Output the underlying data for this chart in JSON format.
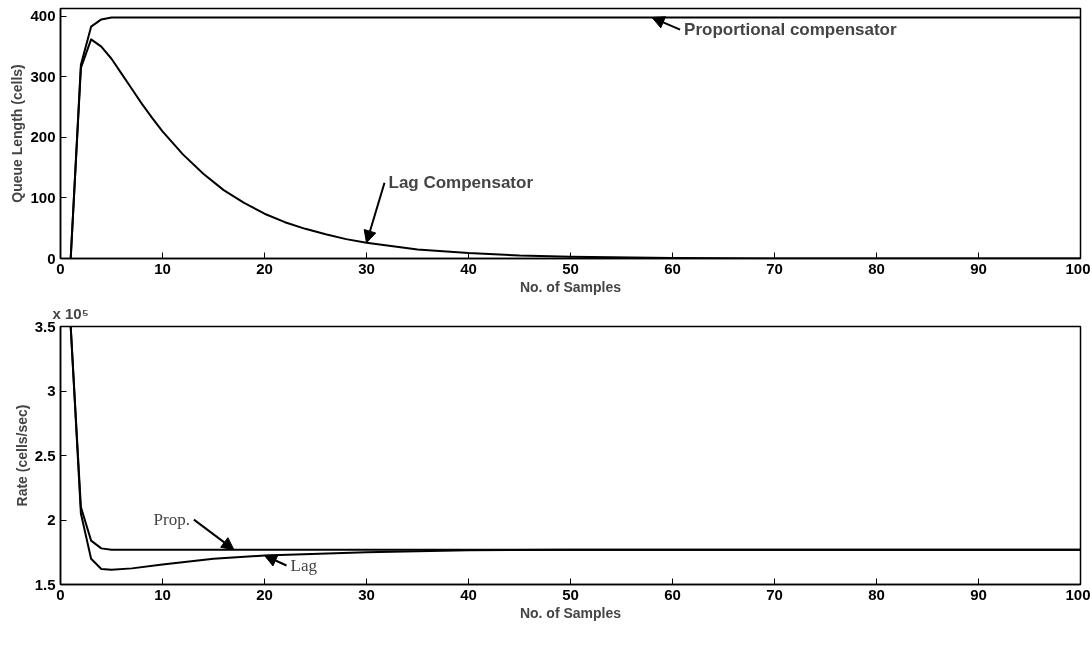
{
  "chart_data": [
    {
      "type": "line",
      "xlabel": "No. of Samples",
      "ylabel": "Queue Length (cells)",
      "xlim": [
        0,
        100
      ],
      "ylim": [
        0,
        413
      ],
      "xticks": [
        0,
        10,
        20,
        30,
        40,
        50,
        60,
        70,
        80,
        90,
        100
      ],
      "yticks": [
        0,
        100,
        200,
        300,
        400
      ],
      "grid": false,
      "series": [
        {
          "color": "#000000",
          "x": [
            1,
            2,
            3,
            4,
            5,
            6,
            100
          ],
          "values": [
            0,
            320,
            383,
            395,
            398,
            398,
            398
          ]
        },
        {
          "color": "#000000",
          "x": [
            1,
            2,
            3,
            4,
            5,
            6,
            7,
            8,
            9,
            10,
            12,
            14,
            16,
            18,
            20,
            22,
            24,
            26,
            28,
            30,
            35,
            40,
            45,
            50,
            60,
            70,
            100
          ],
          "values": [
            0,
            315,
            362,
            350,
            330,
            305,
            280,
            255,
            232,
            210,
            172,
            140,
            113,
            92,
            74,
            60,
            49,
            40,
            32,
            26,
            15,
            9,
            5,
            3,
            1,
            0,
            0
          ]
        }
      ],
      "annotations": [
        {
          "text": "Proportional compensator",
          "x": 58,
          "y": 398
        },
        {
          "text": "Lag Compensator",
          "x": 30,
          "y": 26
        }
      ]
    },
    {
      "type": "line",
      "xlabel": "No. of Samples",
      "ylabel": "Rate (cells/sec)",
      "xlim": [
        0,
        100
      ],
      "ylim": [
        1.5,
        3.5
      ],
      "xticks": [
        0,
        10,
        20,
        30,
        40,
        50,
        60,
        70,
        80,
        90,
        100
      ],
      "yticks": [
        1.5,
        2,
        2.5,
        3,
        3.5
      ],
      "grid": false,
      "series": [
        {
          "color": "#000000",
          "x": [
            1,
            2,
            3,
            4,
            5,
            6,
            100
          ],
          "values": [
            3.5,
            2.1,
            1.84,
            1.78,
            1.77,
            1.77,
            1.77
          ]
        },
        {
          "color": "#000000",
          "x": [
            1,
            2,
            3,
            4,
            5,
            7,
            10,
            15,
            20,
            30,
            40,
            50,
            100
          ],
          "values": [
            3.5,
            2.05,
            1.7,
            1.62,
            1.615,
            1.625,
            1.655,
            1.7,
            1.725,
            1.75,
            1.765,
            1.77,
            1.77
          ]
        }
      ],
      "annotations": [
        "x 10⁵",
        {
          "text": "Prop.",
          "x": 17,
          "y": 1.77
        },
        {
          "text": "Lag",
          "x": 20,
          "y": 1.725
        }
      ]
    }
  ]
}
